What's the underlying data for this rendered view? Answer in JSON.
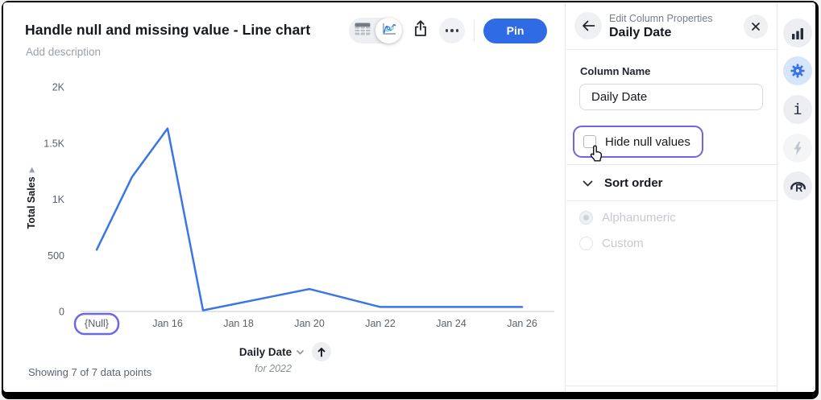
{
  "header": {
    "title": "Handle null and missing value - Line chart",
    "description_placeholder": "Add description",
    "toolbar": {
      "view_toggle_icons": [
        "table-view-icon",
        "chart-view-icon"
      ],
      "selected_view": "chart",
      "share_icon": "share-icon",
      "more_icon": "ellipsis-icon",
      "pin_label": "Pin",
      "pin_color": "#2e6be4"
    }
  },
  "chart": {
    "y_axis_title": "Total Sales",
    "x_axis_title": "Daily Date",
    "x_axis_subtitle": "for 2022",
    "footer": "Showing 7 of 7 data points"
  },
  "chart_data": {
    "type": "line",
    "title": "Handle null and missing value - Line chart",
    "xlabel": "Daily Date",
    "ylabel": "Total Sales",
    "ylim": [
      0,
      2000
    ],
    "y_ticks": [
      {
        "value": 0,
        "label": "0"
      },
      {
        "value": 500,
        "label": "500"
      },
      {
        "value": 1000,
        "label": "1K"
      },
      {
        "value": 1500,
        "label": "1.5K"
      },
      {
        "value": 2000,
        "label": "2K"
      }
    ],
    "x_tick_labels": [
      "{Null}",
      "Jan 16",
      "Jan 18",
      "Jan 20",
      "Jan 22",
      "Jan 24",
      "Jan 26"
    ],
    "x_tick_days": [
      14,
      16,
      18,
      20,
      22,
      24,
      26
    ],
    "null_slot_day": 14,
    "series": [
      {
        "name": "Total Sales",
        "points": [
          {
            "x": "{Null}",
            "day": 14,
            "value": 550
          },
          {
            "x": "Jan 15",
            "day": 15,
            "value": 1200
          },
          {
            "x": "Jan 16",
            "day": 16,
            "value": 1630
          },
          {
            "x": "Jan 17",
            "day": 17,
            "value": 10
          },
          {
            "x": "Jan 20",
            "day": 20,
            "value": 200
          },
          {
            "x": "Jan 22",
            "day": 22,
            "value": 40
          },
          {
            "x": "Jan 26",
            "day": 26,
            "value": 40
          }
        ]
      }
    ],
    "line_color": "#3b76e6",
    "null_tick_highlighted": true,
    "highlight_color": "#6c67e4",
    "grid": false,
    "legend": false
  },
  "panel": {
    "subtitle": "Edit Column Properties",
    "title": "Daily Date",
    "back_icon": "back-arrow-icon",
    "close_icon": "close-icon",
    "column_name_label": "Column Name",
    "column_name_value": "Daily Date",
    "hide_null": {
      "label": "Hide null values",
      "checked": false,
      "highlighted": true,
      "cursor_over": true
    },
    "sort_order": {
      "label": "Sort order",
      "expanded": true,
      "options": [
        {
          "label": "Alphanumeric",
          "selected": true,
          "disabled": true
        },
        {
          "label": "Custom",
          "selected": false,
          "disabled": true
        }
      ]
    }
  },
  "rail": {
    "items": [
      {
        "icon": "bar-chart-icon",
        "active": false
      },
      {
        "icon": "gear-icon",
        "active": true
      },
      {
        "icon": "info-icon",
        "active": false
      },
      {
        "icon": "lightning-icon",
        "active": false
      },
      {
        "icon": "r-language-icon",
        "active": false
      }
    ],
    "active_color": "#3b74e0"
  }
}
